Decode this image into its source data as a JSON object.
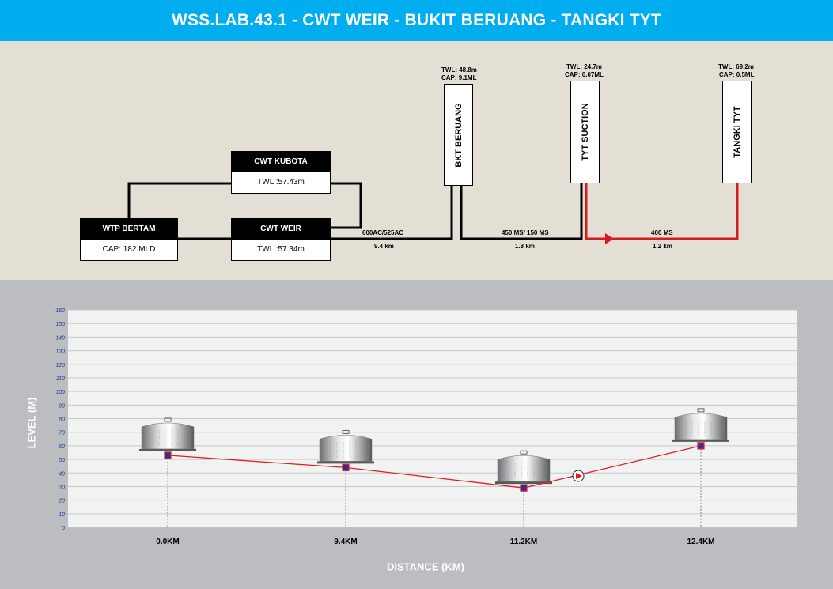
{
  "title": "WSS.LAB.43.1 - CWT WEIR - BUKIT BERUANG - TANGKI TYT",
  "schematic": {
    "wtp": {
      "name": "WTP BERTAM",
      "value": "CAP: 182 MLD"
    },
    "kubota": {
      "name": "CWT KUBOTA",
      "value": "TWL :57.43m"
    },
    "weir": {
      "name": "CWT WEIR",
      "value": "TWL :57.34m"
    },
    "bkt": {
      "name": "BKT BERUANG",
      "twl": "TWL: 48.8m",
      "cap": "CAP: 9.1ML"
    },
    "tyt_suction": {
      "name": "TYT SUCTION",
      "twl": "TWL: 24.7m",
      "cap": "CAP: 0.07ML"
    },
    "tangki": {
      "name": "TANGKI TYT",
      "twl": "TWL: 69.2m",
      "cap": "CAP: 0.5ML"
    },
    "pipes": [
      {
        "spec": "600AC/525AC",
        "length": "9.4 km"
      },
      {
        "spec": "450 MS/ 150 MS",
        "length": "1.8 km"
      },
      {
        "spec": "400 MS",
        "length": "1.2 km"
      }
    ],
    "colors": {
      "pipe": "#000000",
      "pump_line": "#d71920"
    }
  },
  "chart_data": {
    "type": "line",
    "title": "",
    "xlabel": "DISTANCE (KM)",
    "ylabel": "LEVEL (M)",
    "ylim": [
      0,
      160
    ],
    "yticks": [
      0,
      10,
      20,
      30,
      40,
      50,
      60,
      70,
      80,
      90,
      100,
      110,
      120,
      130,
      140,
      150,
      160
    ],
    "categories": [
      "0.0KM",
      "9.4KM",
      "11.2KM",
      "12.4KM"
    ],
    "series": [
      {
        "values": [
          53,
          44,
          29,
          60
        ],
        "color": "#e31b23"
      }
    ],
    "tank_icons": [
      "tank-icon",
      "tank-icon",
      "tank-icon",
      "tank-icon"
    ],
    "pump_marker": "pump-icon",
    "grid": true
  }
}
